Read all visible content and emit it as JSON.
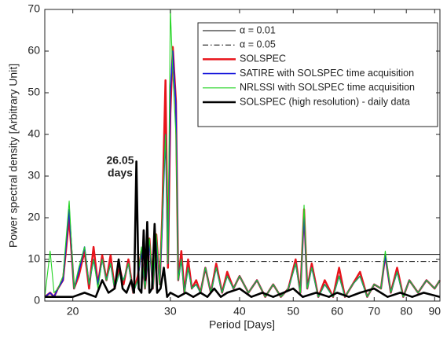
{
  "chart_data": {
    "type": "line",
    "xlabel": "Period [Days]",
    "ylabel": "Power spectral density [Arbitrary Unit]",
    "annotation": [
      "26.05",
      "days"
    ],
    "xscale": "log",
    "xlim": [
      17.8,
      92
    ],
    "xticks": [
      20,
      30,
      40,
      50,
      60,
      70,
      80,
      90
    ],
    "ylim": [
      0,
      70
    ],
    "yticks": [
      0,
      10,
      20,
      30,
      40,
      50,
      60,
      70
    ],
    "hlines": [
      {
        "name": "α = 0.01",
        "value": 11.2,
        "color": "#000000",
        "dash": "solid"
      },
      {
        "name": "α = 0.05",
        "value": 9.5,
        "color": "#000000",
        "dash": "dashdot"
      }
    ],
    "x": [
      17.8,
      18.2,
      18.5,
      18.8,
      19.2,
      19.7,
      20.1,
      20.5,
      21,
      21.4,
      21.8,
      22.2,
      22.6,
      23,
      23.4,
      23.8,
      24.3,
      24.7,
      25.2,
      25.7,
      26.2,
      26.6,
      27,
      27.5,
      27.9,
      28.3,
      28.7,
      29,
      29.4,
      29.7,
      30,
      30.3,
      30.7,
      31,
      31.4,
      31.8,
      32.3,
      32.8,
      33.4,
      34,
      34.7,
      35.5,
      36.3,
      37.2,
      38,
      39,
      40,
      41.5,
      43,
      44.5,
      46,
      47.5,
      49,
      50.5,
      51.5,
      52.3,
      53,
      54,
      55.5,
      57,
      59,
      60.5,
      62,
      64,
      66,
      68,
      70,
      72,
      73.3,
      75,
      77,
      79,
      81,
      84,
      87,
      90,
      92
    ],
    "series": [
      {
        "name": "SOLSPEC",
        "color": "#e8141b",
        "width": 2.5,
        "values": [
          1,
          2,
          1,
          3,
          5,
          20,
          3,
          6,
          12,
          3,
          13,
          4,
          11,
          5,
          11,
          3,
          8,
          4,
          10,
          2,
          6,
          12,
          3,
          15,
          3,
          16,
          4,
          20,
          53,
          8,
          45,
          61,
          48,
          5,
          12,
          2,
          10,
          3,
          5,
          2,
          8,
          2,
          9,
          2,
          7,
          3,
          6,
          2,
          5,
          1,
          4,
          1,
          3,
          10,
          2,
          22,
          3,
          9,
          1,
          5,
          1,
          8,
          1,
          4,
          7,
          1,
          4,
          3,
          11,
          2,
          8,
          1,
          5,
          2,
          5,
          3,
          5
        ]
      },
      {
        "name": "SATIRE with SOLSPEC time acquisition",
        "color": "#1a1adc",
        "width": 1.6,
        "values": [
          1,
          2,
          1,
          3,
          5,
          22,
          3,
          7,
          13,
          4,
          10,
          4,
          10,
          5,
          9,
          3,
          7,
          5,
          9,
          2,
          5,
          12,
          3,
          14,
          3,
          15,
          4,
          18,
          40,
          9,
          50,
          60,
          47,
          5,
          10,
          2,
          8,
          3,
          4,
          2,
          8,
          2,
          8,
          2,
          6,
          3,
          6,
          2,
          5,
          1,
          4,
          1,
          3,
          9,
          2,
          21,
          3,
          8,
          1,
          4,
          1,
          6,
          1,
          4,
          6,
          1,
          4,
          3,
          11,
          2,
          7,
          1,
          5,
          2,
          5,
          3,
          5
        ]
      },
      {
        "name": "NRLSSI with SOLSPEC time acquisition",
        "color": "#22d422",
        "width": 1.1,
        "values": [
          1,
          12,
          2,
          3,
          6,
          24,
          3,
          8,
          13,
          4,
          10,
          3,
          10,
          5,
          9,
          3,
          7,
          5,
          9,
          2,
          5,
          13,
          3,
          15,
          3,
          16,
          4,
          20,
          40,
          9,
          70,
          55,
          40,
          5,
          10,
          2,
          8,
          3,
          4,
          2,
          8,
          2,
          8,
          2,
          6,
          3,
          6,
          2,
          5,
          1,
          4,
          1,
          3,
          9,
          2,
          23,
          3,
          8,
          1,
          4,
          1,
          6,
          1,
          4,
          6,
          1,
          4,
          3,
          12,
          2,
          7,
          1,
          5,
          2,
          5,
          3,
          5
        ]
      },
      {
        "name": "SOLSPEC (high resolution) - daily data",
        "color": "#000000",
        "width": 2.6,
        "x": [
          17.8,
          19,
          20,
          21,
          22,
          22.6,
          23.2,
          23.8,
          24.2,
          24.6,
          25,
          25.5,
          25.8,
          26.05,
          26.3,
          26.6,
          26.85,
          27.05,
          27.25,
          27.5,
          27.8,
          28.1,
          28.4,
          28.8,
          29.2,
          29.6,
          30,
          31,
          32,
          33,
          34,
          35,
          36,
          37,
          38,
          40,
          42,
          44,
          46,
          48,
          50,
          52,
          55,
          58,
          60,
          63,
          66,
          70,
          74,
          78,
          82,
          86,
          92
        ],
        "values": [
          1,
          1,
          1,
          2,
          1,
          5,
          2,
          3,
          10,
          3,
          2,
          5,
          2,
          33.5,
          3,
          2,
          17,
          5,
          19,
          2,
          3,
          18.5,
          2,
          3,
          8,
          1,
          2,
          1,
          2,
          1,
          2,
          1,
          3,
          1,
          2,
          3,
          1,
          2,
          1,
          2,
          3,
          1,
          2,
          1,
          2,
          1,
          2,
          3,
          1,
          2,
          1,
          2,
          1
        ]
      }
    ]
  }
}
